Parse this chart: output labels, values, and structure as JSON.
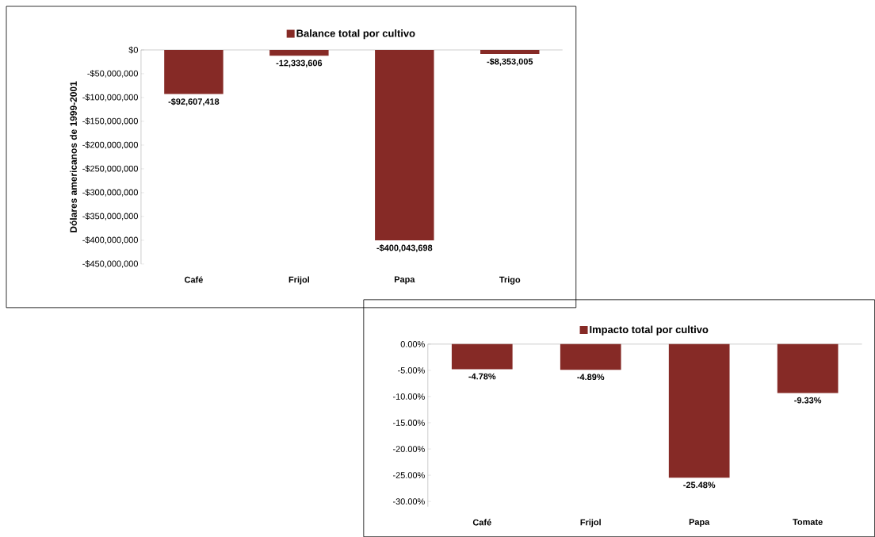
{
  "chart_data": [
    {
      "type": "bar",
      "categories": [
        "Café",
        "Frijol",
        "Papa",
        "Trigo"
      ],
      "series": [
        {
          "name": "Balance total por cultivo",
          "color": "#862a26",
          "values": [
            -92607418,
            -12333606,
            -400043698,
            -8353005
          ],
          "value_labels": [
            "-$92,607,418",
            "-12,333,606",
            "-$400,043,698",
            "-$8,353,005"
          ]
        }
      ],
      "ylabel": "Dólares americanos de 1999-2001",
      "ylim": [
        -450000000,
        0
      ],
      "yticks": [
        {
          "value": 0,
          "label": "$0"
        },
        {
          "value": -50000000,
          "label": "-$50,000,000"
        },
        {
          "value": -100000000,
          "label": "-$100,000,000"
        },
        {
          "value": -150000000,
          "label": "-$150,000,000"
        },
        {
          "value": -200000000,
          "label": "-$200,000,000"
        },
        {
          "value": -250000000,
          "label": "-$250,000,000"
        },
        {
          "value": -300000000,
          "label": "-$300,000,000"
        },
        {
          "value": -350000000,
          "label": "-$350,000,000"
        },
        {
          "value": -400000000,
          "label": "-$400,000,000"
        },
        {
          "value": -450000000,
          "label": "-$450,000,000"
        }
      ],
      "legend": "top"
    },
    {
      "type": "bar",
      "categories": [
        "Café",
        "Frijol",
        "Papa",
        "Tomate"
      ],
      "series": [
        {
          "name": "Impacto total por cultivo",
          "color": "#862a26",
          "values": [
            -4.78,
            -4.89,
            -25.48,
            -9.33
          ],
          "value_labels": [
            "-4.78%",
            "-4.89%",
            "-25.48%",
            "-9.33%"
          ]
        }
      ],
      "ylim": [
        -31,
        0
      ],
      "yticks": [
        {
          "value": 0,
          "label": "0.00%"
        },
        {
          "value": -5,
          "label": "-5.00%"
        },
        {
          "value": -10,
          "label": "-10.00%"
        },
        {
          "value": -15,
          "label": "-15.00%"
        },
        {
          "value": -20,
          "label": "-20.00%"
        },
        {
          "value": -25,
          "label": "-25.00%"
        },
        {
          "value": -30,
          "label": "-30.00%"
        }
      ],
      "legend": "top"
    }
  ]
}
